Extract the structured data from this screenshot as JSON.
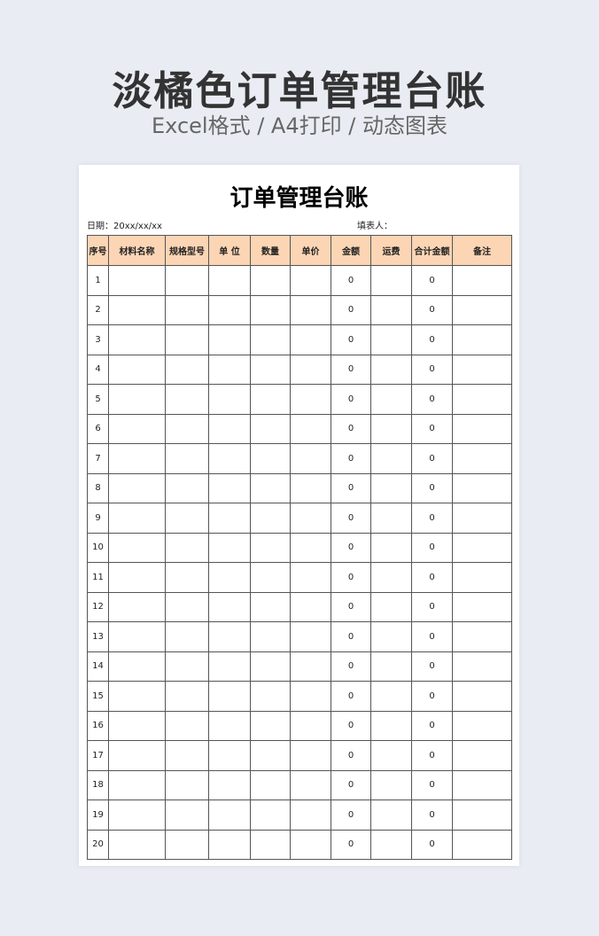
{
  "banner": {
    "title": "淡橘色订单管理台账",
    "subtitle": "Excel格式 / A4打印 / 动态图表"
  },
  "sheet": {
    "title": "订单管理台账",
    "date_label": "日期：20xx/xx/xx",
    "filler_label": "填表人：",
    "header_color": "#fcd5b4",
    "columns": [
      "序号",
      "材料名称",
      "规格型号",
      "单 位",
      "数量",
      "单价",
      "金额",
      "运费",
      "合计金额",
      "备注"
    ],
    "rows": [
      [
        "1",
        "",
        "",
        "",
        "",
        "",
        "0",
        "",
        "0",
        ""
      ],
      [
        "2",
        "",
        "",
        "",
        "",
        "",
        "0",
        "",
        "0",
        ""
      ],
      [
        "3",
        "",
        "",
        "",
        "",
        "",
        "0",
        "",
        "0",
        ""
      ],
      [
        "4",
        "",
        "",
        "",
        "",
        "",
        "0",
        "",
        "0",
        ""
      ],
      [
        "5",
        "",
        "",
        "",
        "",
        "",
        "0",
        "",
        "0",
        ""
      ],
      [
        "6",
        "",
        "",
        "",
        "",
        "",
        "0",
        "",
        "0",
        ""
      ],
      [
        "7",
        "",
        "",
        "",
        "",
        "",
        "0",
        "",
        "0",
        ""
      ],
      [
        "8",
        "",
        "",
        "",
        "",
        "",
        "0",
        "",
        "0",
        ""
      ],
      [
        "9",
        "",
        "",
        "",
        "",
        "",
        "0",
        "",
        "0",
        ""
      ],
      [
        "10",
        "",
        "",
        "",
        "",
        "",
        "0",
        "",
        "0",
        ""
      ],
      [
        "11",
        "",
        "",
        "",
        "",
        "",
        "0",
        "",
        "0",
        ""
      ],
      [
        "12",
        "",
        "",
        "",
        "",
        "",
        "0",
        "",
        "0",
        ""
      ],
      [
        "13",
        "",
        "",
        "",
        "",
        "",
        "0",
        "",
        "0",
        ""
      ],
      [
        "14",
        "",
        "",
        "",
        "",
        "",
        "0",
        "",
        "0",
        ""
      ],
      [
        "15",
        "",
        "",
        "",
        "",
        "",
        "0",
        "",
        "0",
        ""
      ],
      [
        "16",
        "",
        "",
        "",
        "",
        "",
        "0",
        "",
        "0",
        ""
      ],
      [
        "17",
        "",
        "",
        "",
        "",
        "",
        "0",
        "",
        "0",
        ""
      ],
      [
        "18",
        "",
        "",
        "",
        "",
        "",
        "0",
        "",
        "0",
        ""
      ],
      [
        "19",
        "",
        "",
        "",
        "",
        "",
        "0",
        "",
        "0",
        ""
      ],
      [
        "20",
        "",
        "",
        "",
        "",
        "",
        "0",
        "",
        "0",
        ""
      ]
    ]
  }
}
